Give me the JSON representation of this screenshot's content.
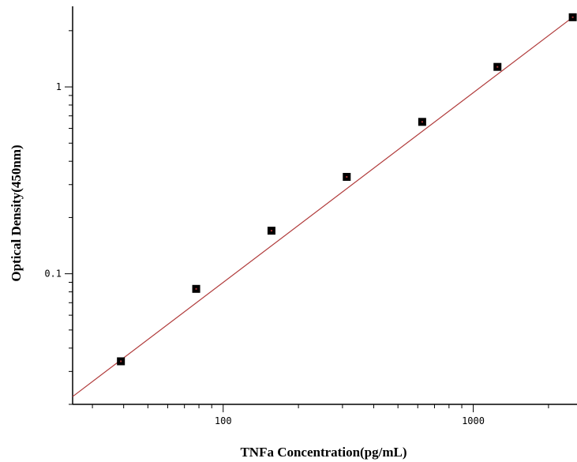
{
  "chart_data": {
    "type": "scatter",
    "xlabel": "TNFa Concentration(pg/mL)",
    "ylabel": "Optical Density(450nm)",
    "x_scale": "log",
    "y_scale": "log",
    "xlim": [
      25,
      2600
    ],
    "ylim": [
      0.02,
      2.7
    ],
    "x_ticks": [
      {
        "value": 100,
        "label": "100"
      },
      {
        "value": 1000,
        "label": "1000"
      }
    ],
    "y_ticks": [
      {
        "value": 0.1,
        "label": "0.1"
      },
      {
        "value": 1,
        "label": "1"
      }
    ],
    "grid": false,
    "legend": "none",
    "series": [
      {
        "kind": "points",
        "x": [
          39,
          78,
          156,
          312,
          625,
          1250,
          2500
        ],
        "y": [
          0.034,
          0.083,
          0.17,
          0.33,
          0.65,
          1.28,
          2.36
        ]
      },
      {
        "kind": "fit-line",
        "x": [
          25,
          2500
        ],
        "y": [
          0.022,
          2.36
        ]
      }
    ],
    "colors": {
      "points": "#000000",
      "fit_line": "#b03a3a",
      "axis": "#000000"
    }
  }
}
